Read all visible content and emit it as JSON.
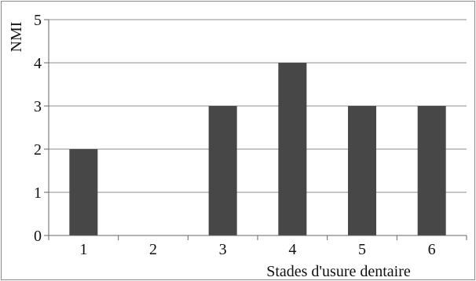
{
  "chart_data": {
    "type": "bar",
    "categories": [
      "1",
      "2",
      "3",
      "4",
      "5",
      "6"
    ],
    "values": [
      2,
      0,
      3,
      4,
      3,
      3
    ],
    "title": "",
    "xlabel": "Stades d'usure dentaire",
    "ylabel": "NMI",
    "ylim": [
      0,
      5
    ],
    "yticks": [
      0,
      1,
      2,
      3,
      4,
      5
    ],
    "grid": true,
    "legend": "none",
    "bar_color": "#474747",
    "grid_color": "#8c8c8c"
  }
}
